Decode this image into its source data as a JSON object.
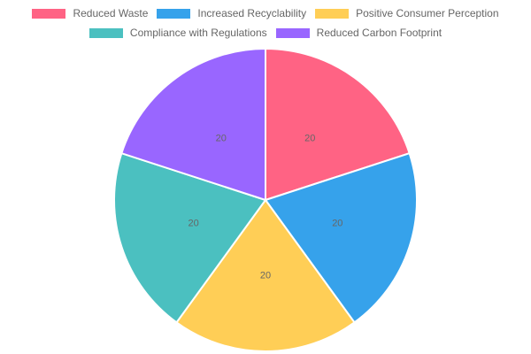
{
  "chart_data": {
    "type": "pie",
    "categories": [
      "Reduced Waste",
      "Increased Recyclability",
      "Positive Consumer Perception",
      "Compliance with Regulations",
      "Reduced Carbon Footprint"
    ],
    "values": [
      20,
      20,
      20,
      20,
      20
    ],
    "colors": [
      "#ff6384",
      "#36a2eb",
      "#ffce56",
      "#4bc0c0",
      "#9966ff"
    ],
    "legend": "top"
  }
}
